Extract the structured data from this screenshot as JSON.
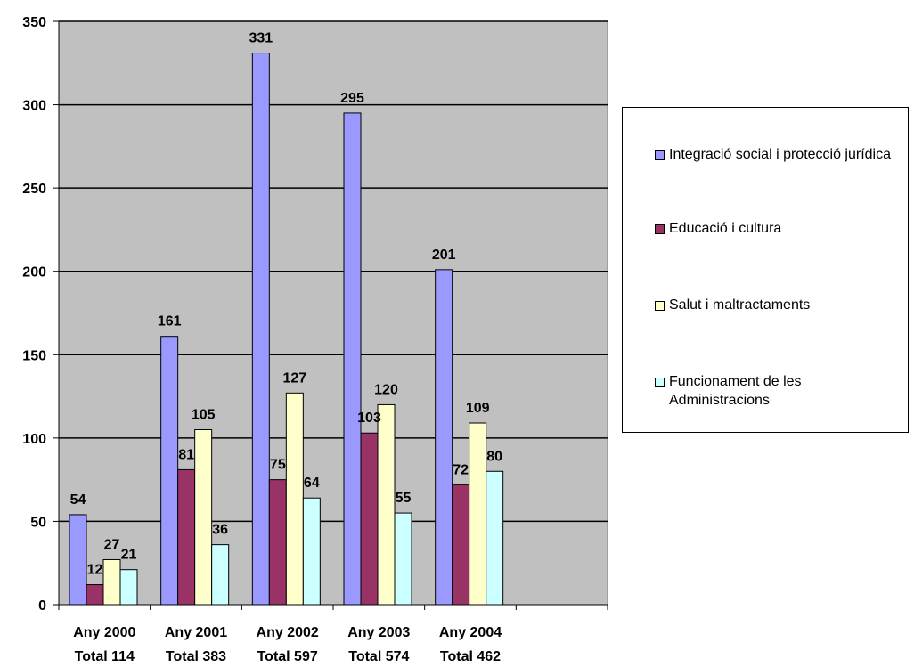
{
  "chart_data": {
    "type": "bar",
    "categories": [
      [
        "Any 2000",
        "Total 114"
      ],
      [
        "Any 2001",
        "Total 383"
      ],
      [
        "Any 2002",
        "Total 597"
      ],
      [
        "Any 2003",
        "Total 574"
      ],
      [
        "Any 2004",
        "Total 462"
      ]
    ],
    "series": [
      {
        "name": "Integració social i protecció jurídica",
        "color": "#9999ff",
        "values": [
          54,
          161,
          331,
          295,
          201
        ]
      },
      {
        "name": "Educació i cultura",
        "color": "#993366",
        "values": [
          12,
          81,
          75,
          103,
          72
        ]
      },
      {
        "name": "Salut i maltractaments",
        "color": "#ffffcc",
        "values": [
          27,
          105,
          127,
          120,
          109
        ]
      },
      {
        "name": "Funcionament de les Administracions",
        "color": "#ccffff",
        "values": [
          21,
          36,
          64,
          55,
          80
        ]
      }
    ],
    "ylim": [
      0,
      350
    ],
    "yticks": [
      0,
      50,
      100,
      150,
      200,
      250,
      300,
      350
    ],
    "plot_background": "#c0c0c0",
    "grid": true,
    "legend": "right"
  }
}
